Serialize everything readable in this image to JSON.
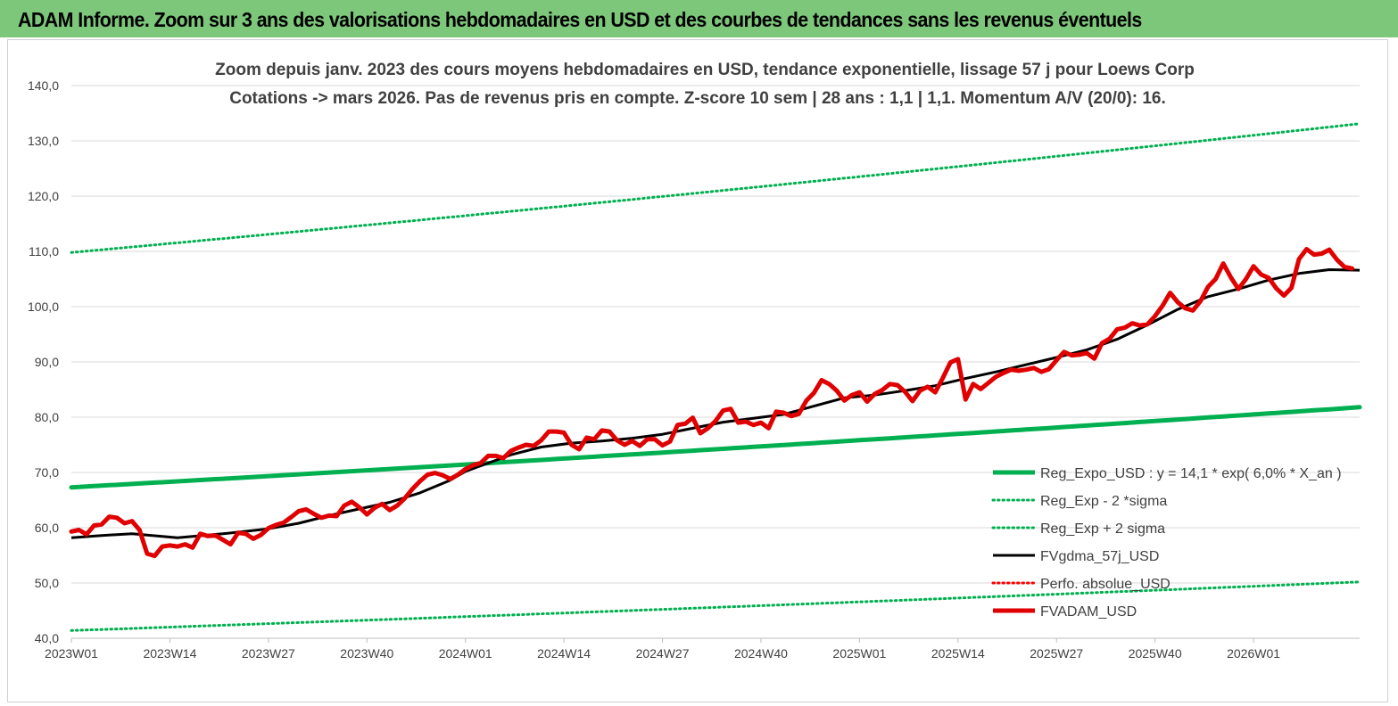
{
  "header": {
    "title": "ADAM Informe. Zoom sur 3 ans des valorisations hebdomadaires en USD et des courbes de tendances sans les revenus éventuels"
  },
  "chart_data": {
    "type": "line",
    "title": "Zoom depuis janv. 2023 des cours moyens hebdomadaires en USD, tendance exponentielle, lissage 57 j pour Loews Corp",
    "subtitle": "Cotations -> mars 2026. Pas de revenus pris en compte. Z-score 10 sem | 28 ans : 1,1 | 1,1. Momentum A/V (20/0): 16.",
    "xlabel": "",
    "ylabel": "",
    "ylim": [
      40,
      140
    ],
    "yticks": [
      "40,0",
      "50,0",
      "60,0",
      "70,0",
      "80,0",
      "90,0",
      "100,0",
      "110,0",
      "120,0",
      "130,0",
      "140,0"
    ],
    "xticks": [
      "2023W01",
      "2023W14",
      "2023W27",
      "2023W40",
      "2024W01",
      "2024W14",
      "2024W27",
      "2024W40",
      "2025W01",
      "2025W14",
      "2025W27",
      "2025W40",
      "2026W01"
    ],
    "xtick_week_index": [
      0,
      13,
      26,
      39,
      52,
      65,
      78,
      91,
      104,
      117,
      130,
      143,
      156
    ],
    "week_count": 170,
    "grid": true,
    "legend_position": "bottom-right",
    "series": [
      {
        "name": "Reg_Expo_USD : y = 14,1 * exp( 6,0% *  X_an )",
        "color": "#00b050",
        "style": "solid-thick",
        "start": 67.3,
        "end": 81.8
      },
      {
        "name": "Reg_Exp - 2 *sigma",
        "color": "#00b050",
        "style": "dotted",
        "start": 41.4,
        "end": 50.2
      },
      {
        "name": "Reg_Exp + 2 sigma",
        "color": "#00b050",
        "style": "dotted",
        "start": 109.8,
        "end": 133.1
      },
      {
        "name": "FVgdma_57j_USD",
        "color": "#000000",
        "style": "solid",
        "points": [
          [
            0,
            58.2
          ],
          [
            4,
            58.6
          ],
          [
            8,
            58.9
          ],
          [
            14,
            58.2
          ],
          [
            20,
            58.9
          ],
          [
            26,
            59.8
          ],
          [
            30,
            60.8
          ],
          [
            34,
            62.2
          ],
          [
            38,
            63.4
          ],
          [
            42,
            64.6
          ],
          [
            46,
            66.3
          ],
          [
            50,
            68.6
          ],
          [
            52,
            70.2
          ],
          [
            55,
            71.7
          ],
          [
            58,
            73.2
          ],
          [
            62,
            74.6
          ],
          [
            66,
            75.3
          ],
          [
            70,
            75.7
          ],
          [
            74,
            76.2
          ],
          [
            78,
            76.9
          ],
          [
            82,
            78.0
          ],
          [
            86,
            79.1
          ],
          [
            90,
            79.8
          ],
          [
            94,
            80.5
          ],
          [
            98,
            82.0
          ],
          [
            102,
            83.5
          ],
          [
            106,
            84.0
          ],
          [
            110,
            84.8
          ],
          [
            114,
            85.7
          ],
          [
            118,
            87.0
          ],
          [
            122,
            88.2
          ],
          [
            126,
            89.5
          ],
          [
            130,
            90.8
          ],
          [
            134,
            92.2
          ],
          [
            138,
            94.1
          ],
          [
            142,
            96.7
          ],
          [
            146,
            99.5
          ],
          [
            150,
            101.8
          ],
          [
            154,
            103.2
          ],
          [
            158,
            104.8
          ],
          [
            162,
            106.0
          ],
          [
            166,
            106.7
          ],
          [
            170,
            106.6
          ]
        ]
      },
      {
        "name": "Perfo. absolue_USD",
        "color": "#ff0000",
        "style": "dotted"
      },
      {
        "name": "FVADAM_USD",
        "color": "#e00000",
        "style": "solid-thick",
        "points": [
          [
            0,
            59.3
          ],
          [
            1,
            59.6
          ],
          [
            2,
            58.8
          ],
          [
            3,
            60.4
          ],
          [
            4,
            60.6
          ],
          [
            5,
            62.0
          ],
          [
            6,
            61.8
          ],
          [
            7,
            60.8
          ],
          [
            8,
            61.2
          ],
          [
            9,
            59.6
          ],
          [
            10,
            55.3
          ],
          [
            11,
            54.9
          ],
          [
            12,
            56.6
          ],
          [
            13,
            56.8
          ],
          [
            14,
            56.6
          ],
          [
            15,
            57.0
          ],
          [
            16,
            56.4
          ],
          [
            17,
            58.9
          ],
          [
            18,
            58.5
          ],
          [
            19,
            58.6
          ],
          [
            20,
            57.8
          ],
          [
            21,
            57.0
          ],
          [
            22,
            59.1
          ],
          [
            23,
            58.9
          ],
          [
            24,
            58.0
          ],
          [
            25,
            58.7
          ],
          [
            26,
            59.9
          ],
          [
            27,
            60.5
          ],
          [
            28,
            60.9
          ],
          [
            29,
            61.9
          ],
          [
            30,
            63.0
          ],
          [
            31,
            63.3
          ],
          [
            32,
            62.5
          ],
          [
            33,
            61.8
          ],
          [
            34,
            62.2
          ],
          [
            35,
            62.1
          ],
          [
            36,
            64.0
          ],
          [
            37,
            64.7
          ],
          [
            38,
            63.7
          ],
          [
            39,
            62.4
          ],
          [
            40,
            63.6
          ],
          [
            41,
            64.3
          ],
          [
            42,
            63.2
          ],
          [
            43,
            64.0
          ],
          [
            44,
            65.3
          ],
          [
            45,
            67.0
          ],
          [
            46,
            68.4
          ],
          [
            47,
            69.6
          ],
          [
            48,
            69.9
          ],
          [
            49,
            69.5
          ],
          [
            50,
            68.8
          ],
          [
            51,
            69.6
          ],
          [
            52,
            70.6
          ],
          [
            53,
            71.3
          ],
          [
            54,
            71.7
          ],
          [
            55,
            73.0
          ],
          [
            56,
            73.0
          ],
          [
            57,
            72.6
          ],
          [
            58,
            73.9
          ],
          [
            59,
            74.5
          ],
          [
            60,
            75.0
          ],
          [
            61,
            74.8
          ],
          [
            62,
            75.8
          ],
          [
            63,
            77.4
          ],
          [
            64,
            77.4
          ],
          [
            65,
            77.2
          ],
          [
            66,
            75.0
          ],
          [
            67,
            74.2
          ],
          [
            68,
            76.3
          ],
          [
            69,
            76.0
          ],
          [
            70,
            77.6
          ],
          [
            71,
            77.4
          ],
          [
            72,
            75.8
          ],
          [
            73,
            75.0
          ],
          [
            74,
            75.7
          ],
          [
            75,
            74.8
          ],
          [
            76,
            76.0
          ],
          [
            77,
            76.0
          ],
          [
            78,
            74.9
          ],
          [
            79,
            75.6
          ],
          [
            80,
            78.6
          ],
          [
            81,
            78.8
          ],
          [
            82,
            79.9
          ],
          [
            83,
            77.1
          ],
          [
            84,
            78.0
          ],
          [
            85,
            79.3
          ],
          [
            86,
            81.2
          ],
          [
            87,
            81.5
          ],
          [
            88,
            79.0
          ],
          [
            89,
            79.2
          ],
          [
            90,
            78.6
          ],
          [
            91,
            79.0
          ],
          [
            92,
            78.0
          ],
          [
            93,
            81.0
          ],
          [
            94,
            80.8
          ],
          [
            95,
            80.2
          ],
          [
            96,
            80.6
          ],
          [
            97,
            83.0
          ],
          [
            98,
            84.4
          ],
          [
            99,
            86.7
          ],
          [
            100,
            86.0
          ],
          [
            101,
            84.8
          ],
          [
            102,
            83.0
          ],
          [
            103,
            84.0
          ],
          [
            104,
            84.5
          ],
          [
            105,
            82.8
          ],
          [
            106,
            84.2
          ],
          [
            107,
            84.9
          ],
          [
            108,
            86.0
          ],
          [
            109,
            85.8
          ],
          [
            110,
            84.6
          ],
          [
            111,
            82.9
          ],
          [
            112,
            84.8
          ],
          [
            113,
            85.5
          ],
          [
            114,
            84.5
          ],
          [
            115,
            87.1
          ],
          [
            116,
            89.9
          ],
          [
            117,
            90.5
          ],
          [
            118,
            83.2
          ],
          [
            119,
            86.0
          ],
          [
            120,
            85.1
          ],
          [
            121,
            86.2
          ],
          [
            122,
            87.3
          ],
          [
            123,
            88.0
          ],
          [
            124,
            88.6
          ],
          [
            125,
            88.4
          ],
          [
            126,
            88.6
          ],
          [
            127,
            88.9
          ],
          [
            128,
            88.2
          ],
          [
            129,
            88.7
          ],
          [
            130,
            90.3
          ],
          [
            131,
            91.8
          ],
          [
            132,
            91.2
          ],
          [
            133,
            91.3
          ],
          [
            134,
            91.6
          ],
          [
            135,
            90.6
          ],
          [
            136,
            93.4
          ],
          [
            137,
            94.2
          ],
          [
            138,
            95.9
          ],
          [
            139,
            96.2
          ],
          [
            140,
            97.0
          ],
          [
            141,
            96.6
          ],
          [
            142,
            96.8
          ],
          [
            143,
            98.3
          ],
          [
            144,
            100.2
          ],
          [
            145,
            102.5
          ],
          [
            146,
            100.8
          ],
          [
            147,
            99.7
          ],
          [
            148,
            99.3
          ],
          [
            149,
            101.0
          ],
          [
            150,
            103.6
          ],
          [
            151,
            105.0
          ],
          [
            152,
            107.8
          ],
          [
            153,
            105.3
          ],
          [
            154,
            103.2
          ],
          [
            155,
            105.0
          ],
          [
            156,
            107.3
          ],
          [
            157,
            105.8
          ],
          [
            158,
            105.2
          ],
          [
            159,
            103.3
          ],
          [
            160,
            102.0
          ],
          [
            161,
            103.4
          ],
          [
            162,
            108.6
          ],
          [
            163,
            110.4
          ],
          [
            164,
            109.4
          ],
          [
            165,
            109.6
          ],
          [
            166,
            110.3
          ],
          [
            167,
            108.5
          ],
          [
            168,
            107.2
          ],
          [
            169,
            106.9
          ]
        ]
      }
    ]
  }
}
